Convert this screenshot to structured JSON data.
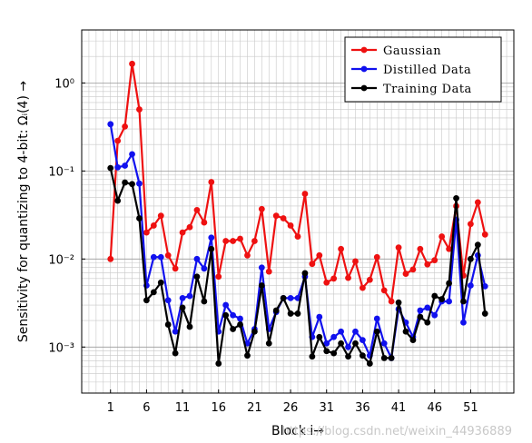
{
  "chart_data": {
    "type": "line",
    "xlabel": "Block i→",
    "ylabel": "Sensitivity for quantizing to 4-bit: Ωᵢ(4) →",
    "yscale": "log",
    "ylim": [
      0.0003,
      4
    ],
    "xlim": [
      -3,
      57
    ],
    "x_ticks": [
      1,
      6,
      11,
      16,
      21,
      26,
      31,
      36,
      41,
      46,
      51
    ],
    "y_ticks": [
      {
        "value": 0.001,
        "label": "10⁻³"
      },
      {
        "value": 0.01,
        "label": "10⁻²"
      },
      {
        "value": 0.1,
        "label": "10⁻¹"
      },
      {
        "value": 1,
        "label": "10⁰"
      }
    ],
    "grid": true,
    "legend_position": "top-right",
    "x": [
      1,
      2,
      3,
      4,
      5,
      6,
      7,
      8,
      9,
      10,
      11,
      12,
      13,
      14,
      15,
      16,
      17,
      18,
      19,
      20,
      21,
      22,
      23,
      24,
      25,
      26,
      27,
      28,
      29,
      30,
      31,
      32,
      33,
      34,
      35,
      36,
      37,
      38,
      39,
      40,
      41,
      42,
      43,
      44,
      45,
      46,
      47,
      48,
      49,
      50,
      51,
      52,
      53
    ],
    "series": [
      {
        "name": "Gaussian",
        "color": "#ee1111",
        "values": [
          0.01,
          0.22,
          0.32,
          1.65,
          0.5,
          0.02,
          0.024,
          0.031,
          0.011,
          0.0078,
          0.02,
          0.023,
          0.036,
          0.026,
          0.075,
          0.0063,
          0.016,
          0.016,
          0.017,
          0.011,
          0.016,
          0.037,
          0.0072,
          0.031,
          0.029,
          0.024,
          0.018,
          0.055,
          0.0088,
          0.011,
          0.0054,
          0.006,
          0.013,
          0.0061,
          0.0094,
          0.0047,
          0.0058,
          0.0105,
          0.0044,
          0.0033,
          0.0135,
          0.0068,
          0.0076,
          0.013,
          0.0087,
          0.0097,
          0.018,
          0.013,
          0.04,
          0.0065,
          0.025,
          0.044,
          0.019
        ]
      },
      {
        "name": "Distilled Data",
        "color": "#1111ee",
        "values": [
          0.34,
          0.11,
          0.115,
          0.155,
          0.072,
          0.005,
          0.0105,
          0.0105,
          0.0034,
          0.0015,
          0.0036,
          0.0038,
          0.01,
          0.0078,
          0.0175,
          0.0015,
          0.003,
          0.0023,
          0.0021,
          0.0011,
          0.0016,
          0.008,
          0.0016,
          0.0025,
          0.0036,
          0.0036,
          0.0036,
          0.0063,
          0.0013,
          0.0022,
          0.0011,
          0.0013,
          0.0015,
          0.001,
          0.0015,
          0.0012,
          0.0008,
          0.0021,
          0.0011,
          0.00075,
          0.0027,
          0.0019,
          0.0013,
          0.0026,
          0.0028,
          0.0023,
          0.0033,
          0.0033,
          0.028,
          0.0019,
          0.005,
          0.011,
          0.0049
        ]
      },
      {
        "name": "Training Data",
        "color": "#000000",
        "values": [
          0.108,
          0.046,
          0.074,
          0.071,
          0.029,
          0.0034,
          0.0042,
          0.0054,
          0.0018,
          0.00085,
          0.0028,
          0.0017,
          0.0063,
          0.0033,
          0.013,
          0.00065,
          0.0023,
          0.0016,
          0.0018,
          0.0008,
          0.0015,
          0.005,
          0.0011,
          0.0026,
          0.0036,
          0.0024,
          0.0024,
          0.0069,
          0.00078,
          0.0013,
          0.0009,
          0.00085,
          0.0011,
          0.00078,
          0.0011,
          0.0008,
          0.00065,
          0.0015,
          0.00075,
          0.00075,
          0.0032,
          0.0015,
          0.0012,
          0.0022,
          0.0019,
          0.0038,
          0.0035,
          0.0053,
          0.049,
          0.0033,
          0.01,
          0.0145,
          0.0024
        ]
      }
    ]
  },
  "watermark": "https://blog.csdn.net/weixin_44936889"
}
